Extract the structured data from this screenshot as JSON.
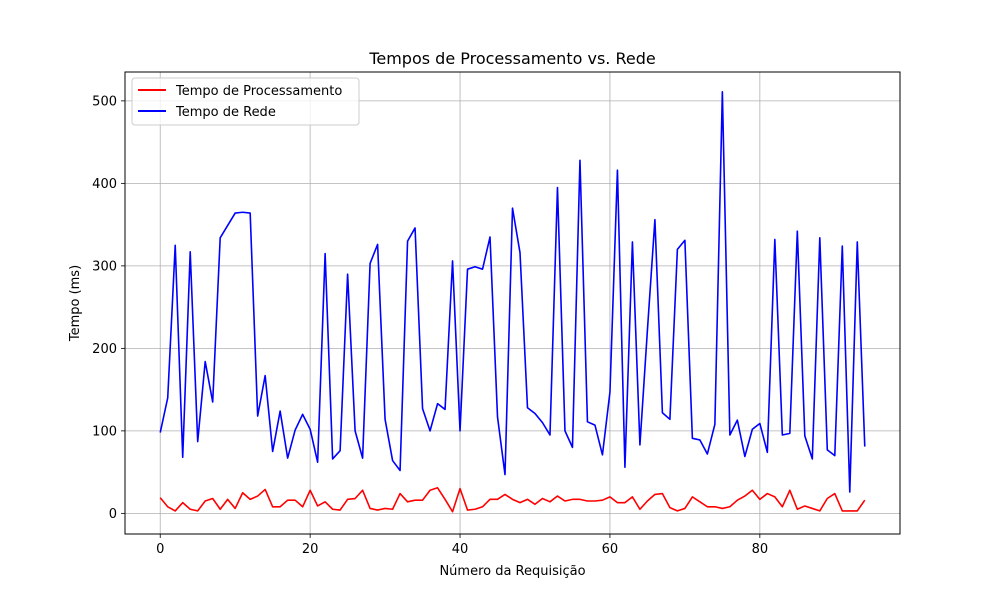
{
  "chart_data": {
    "type": "line",
    "title": "Tempos de Processamento vs. Rede",
    "xlabel": "Número da Requisição",
    "ylabel": "Tempo (ms)",
    "xlim": [
      -4.7,
      98.7
    ],
    "ylim": [
      -25,
      535
    ],
    "xticks": [
      0,
      20,
      40,
      60,
      80
    ],
    "yticks": [
      0,
      100,
      200,
      300,
      400,
      500
    ],
    "grid": true,
    "legend_position": "top-left",
    "series": [
      {
        "name": "Tempo de Processamento",
        "color": "#ff0000",
        "values": [
          19,
          8,
          3,
          13,
          5,
          3,
          15,
          18,
          5,
          17,
          6,
          25,
          17,
          21,
          29,
          8,
          8,
          16,
          16,
          8,
          28,
          9,
          14,
          5,
          4,
          17,
          18,
          28,
          6,
          4,
          6,
          5,
          24,
          14,
          16,
          16,
          28,
          31,
          17,
          2,
          30,
          4,
          5,
          8,
          17,
          17,
          23,
          17,
          13,
          17,
          11,
          18,
          14,
          21,
          15,
          17,
          17,
          15,
          15,
          16,
          20,
          13,
          13,
          20,
          5,
          15,
          23,
          24,
          7,
          3,
          6,
          20,
          14,
          8,
          8,
          6,
          8,
          16,
          21,
          28,
          17,
          24,
          20,
          8,
          28,
          5,
          9,
          6,
          3,
          18,
          24,
          3,
          3,
          3,
          16
        ]
      },
      {
        "name": "Tempo de Rede",
        "color": "#0000ff",
        "values": [
          98,
          140,
          325,
          68,
          317,
          87,
          184,
          135,
          334,
          349,
          364,
          365,
          364,
          118,
          167,
          75,
          124,
          67,
          101,
          120,
          102,
          62,
          315,
          66,
          76,
          290,
          100,
          67,
          303,
          326,
          114,
          64,
          52,
          330,
          346,
          127,
          100,
          133,
          126,
          306,
          100,
          296,
          299,
          296,
          335,
          117,
          47,
          370,
          316,
          128,
          121,
          110,
          95,
          395,
          100,
          80,
          428,
          111,
          107,
          71,
          147,
          416,
          56,
          329,
          83,
          222,
          356,
          122,
          114,
          320,
          331,
          91,
          89,
          72,
          108,
          511,
          95,
          113,
          69,
          102,
          109,
          74,
          332,
          95,
          97,
          342,
          94,
          66,
          334,
          77,
          70,
          324,
          26,
          329,
          81
        ]
      }
    ]
  }
}
